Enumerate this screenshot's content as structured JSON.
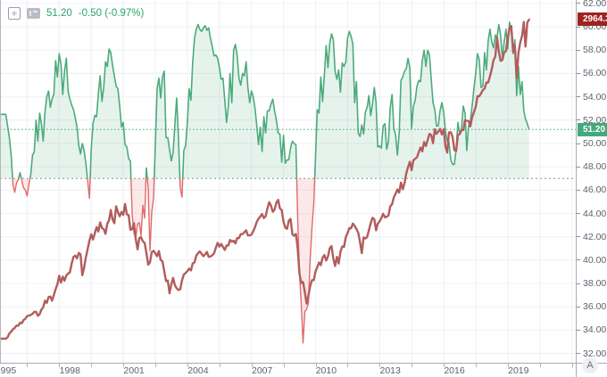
{
  "legend": {
    "value": "51.20",
    "change": "-0.50 (-0.97%)",
    "add_glyph": "+"
  },
  "price_labels": {
    "overlay_last": "2964.3",
    "oscillator_last": "51.20"
  },
  "y_axis": {
    "ticks": [
      "62.00",
      "60.00",
      "58.00",
      "56.00",
      "54.00",
      "52.00",
      "50.00",
      "48.00",
      "46.00",
      "44.00",
      "42.00",
      "40.00",
      "38.00",
      "36.00",
      "34.00",
      "32.00"
    ]
  },
  "x_axis": {
    "ticks": [
      "1995",
      "1998",
      "2001",
      "2004",
      "2007",
      "2010",
      "2013",
      "2016",
      "2019"
    ]
  },
  "corner_button": "A",
  "colors": {
    "legend_text": "#2aa36b",
    "oscillator_line": "#4cab7c",
    "oscillator_fill": "rgba(76,171,124,0.14)",
    "below_baseline_line": "#e16a6a",
    "below_baseline_fill": "rgba(225,106,106,0.15)",
    "overlay_line": "#b25c5c",
    "overlay_badge": "#9e2320",
    "oscillator_badge": "#44a97c",
    "value_dotted_line": "#3fa873",
    "baseline_dotted_line": "#8b8e98",
    "grid": "#eef0f4"
  },
  "chart_data": {
    "type": "line",
    "title": "",
    "x_start": "1995-01",
    "interval": "monthly",
    "x_tick_labels": [
      "1995",
      "1998",
      "2001",
      "2004",
      "2007",
      "2010",
      "2013",
      "2016",
      "2019"
    ],
    "y_axis_visible_range": [
      31.2,
      62.3
    ],
    "y_ticks": [
      32,
      34,
      36,
      38,
      40,
      42,
      44,
      46,
      48,
      50,
      52,
      54,
      56,
      58,
      60,
      62
    ],
    "grid": true,
    "baseline": 47.0,
    "series": [
      {
        "name": "green_oscillator_area",
        "style": "area_with_baseline",
        "last_value": 51.2,
        "values": [
          52.5,
          51.5,
          50.5,
          49.0,
          46.5,
          45.8,
          46.6,
          46.9,
          47.5,
          46.8,
          46.2,
          46.0,
          45.5,
          46.5,
          47.3,
          49.0,
          49.3,
          52.0,
          50.2,
          52.6,
          51.7,
          50.2,
          52.7,
          54.0,
          54.5,
          53.1,
          53.8,
          54.2,
          57.1,
          55.7,
          57.7,
          56.8,
          54.2,
          56.2,
          57.3,
          54.5,
          53.8,
          53.3,
          52.9,
          52.2,
          51.4,
          49.8,
          49.1,
          50.0,
          49.4,
          48.3,
          46.8,
          45.3,
          49.5,
          51.7,
          52.4,
          52.3,
          54.3,
          55.8,
          53.6,
          54.8,
          57.0,
          56.6,
          58.1,
          57.8,
          56.7,
          55.8,
          54.9,
          54.7,
          53.2,
          51.4,
          51.8,
          49.9,
          49.7,
          48.7,
          48.5,
          43.9,
          42.3,
          41.9,
          43.1,
          43.2,
          42.1,
          44.7,
          43.6,
          47.9,
          46.2,
          40.8,
          44.1,
          45.3,
          49.9,
          54.7,
          55.6,
          53.9,
          55.7,
          56.2,
          50.5,
          50.5,
          49.5,
          48.5,
          49.2,
          51.6,
          53.9,
          50.5,
          46.2,
          45.4,
          49.4,
          49.8,
          51.8,
          54.7,
          53.7,
          57.0,
          59.0,
          59.8,
          60.2,
          59.8,
          59.6,
          59.9,
          60.1,
          59.7,
          59.9,
          59.0,
          58.3,
          57.5,
          57.6,
          57.3,
          56.5,
          55.5,
          55.6,
          53.7,
          51.8,
          53.2,
          56.0,
          53.5,
          58.0,
          58.5,
          57.5,
          55.6,
          55.0,
          56.0,
          55.8,
          57.0,
          54.8,
          53.5,
          54.5,
          54.0,
          53.0,
          51.5,
          49.9,
          51.4,
          49.3,
          52.3,
          50.9,
          52.8,
          52.8,
          53.4,
          53.8,
          52.8,
          52.0,
          50.9,
          50.8,
          48.4,
          50.7,
          48.3,
          48.6,
          48.6,
          49.6,
          50.2,
          50.0,
          49.9,
          43.5,
          38.9,
          36.2,
          32.9,
          35.6,
          35.8,
          36.3,
          40.1,
          42.8,
          44.8,
          48.9,
          52.9,
          52.6,
          55.7,
          53.6,
          55.9,
          58.4,
          56.5,
          58.6,
          59.4,
          58.9,
          56.2,
          55.5,
          56.3,
          54.4,
          56.9,
          56.6,
          57.0,
          59.0,
          59.6,
          59.2,
          58.5,
          53.5,
          55.3,
          50.9,
          50.6,
          51.6,
          50.8,
          52.7,
          53.1,
          54.1,
          52.4,
          53.4,
          54.8,
          53.5,
          49.7,
          49.8,
          49.6,
          51.5,
          51.7,
          49.5,
          50.2,
          53.1,
          54.2,
          51.3,
          50.7,
          49.0,
          50.9,
          55.4,
          55.7,
          56.2,
          56.4,
          57.3,
          56.5,
          51.3,
          53.2,
          53.7,
          54.9,
          55.4,
          55.3,
          57.1,
          58.0,
          56.6,
          58.0,
          57.6,
          55.5,
          53.5,
          52.9,
          51.5,
          51.5,
          52.8,
          53.5,
          52.7,
          51.1,
          50.2,
          50.1,
          48.6,
          48.2,
          48.2,
          49.5,
          51.8,
          50.8,
          51.3,
          53.2,
          52.6,
          49.4,
          51.5,
          51.9,
          53.2,
          54.7,
          56.0,
          57.7,
          57.2,
          54.8,
          54.9,
          57.8,
          56.3,
          58.8,
          59.8,
          58.7,
          58.2,
          59.3,
          59.1,
          60.2,
          59.3,
          57.3,
          58.7,
          59.8,
          58.1,
          60.4,
          59.6,
          57.7,
          58.9,
          54.1,
          56.6,
          54.2,
          55.3,
          52.8,
          52.1,
          51.7,
          51.2
        ]
      },
      {
        "name": "red_overlay_line",
        "style": "line",
        "last_value": 2964.3,
        "values": [
          459,
          470,
          500,
          514,
          533,
          544,
          562,
          561,
          584,
          581,
          605,
          615,
          636,
          640,
          645,
          654,
          669,
          670,
          639,
          651,
          687,
          705,
          757,
          740,
          786,
          790,
          757,
          801,
          848,
          885,
          954,
          899,
          947,
          914,
          955,
          970,
          980,
          1049,
          1101,
          1111,
          1090,
          1133,
          1120,
          957,
          1017,
          1098,
          1163,
          1229,
          1279,
          1238,
          1286,
          1335,
          1301,
          1372,
          1328,
          1320,
          1282,
          1362,
          1388,
          1469,
          1394,
          1366,
          1498,
          1452,
          1420,
          1454,
          1430,
          1517,
          1436,
          1429,
          1314,
          1320,
          1366,
          1239,
          1160,
          1249,
          1255,
          1224,
          1211,
          1133,
          1040,
          1059,
          1139,
          1148,
          1130,
          1106,
          1147,
          1076,
          1067,
          989,
          911,
          916,
          815,
          885,
          936,
          879,
          855,
          841,
          848,
          916,
          963,
          974,
          990,
          1008,
          995,
          1050,
          1058,
          1111,
          1131,
          1144,
          1126,
          1107,
          1120,
          1140,
          1101,
          1104,
          1114,
          1130,
          1173,
          1211,
          1181,
          1203,
          1180,
          1156,
          1191,
          1191,
          1234,
          1220,
          1228,
          1207,
          1249,
          1248,
          1280,
          1280,
          1294,
          1310,
          1270,
          1270,
          1276,
          1303,
          1335,
          1377,
          1400,
          1418,
          1438,
          1406,
          1420,
          1482,
          1530,
          1503,
          1455,
          1473,
          1526,
          1549,
          1481,
          1468,
          1378,
          1330,
          1322,
          1385,
          1400,
          1280,
          1267,
          1282,
          1166,
          968,
          896,
          903,
          825,
          735,
          797,
          872,
          919,
          919,
          987,
          1020,
          1057,
          1036,
          1095,
          1115,
          1073,
          1104,
          1169,
          1186,
          1089,
          1030,
          1101,
          1049,
          1141,
          1183,
          1180,
          1257,
          1286,
          1327,
          1325,
          1363,
          1345,
          1320,
          1292,
          1218,
          1131,
          1253,
          1246,
          1257,
          1312,
          1365,
          1408,
          1397,
          1310,
          1362,
          1379,
          1406,
          1440,
          1412,
          1416,
          1426,
          1498,
          1514,
          1569,
          1597,
          1630,
          1606,
          1685,
          1632,
          1681,
          1756,
          1805,
          1848,
          1782,
          1859,
          1872,
          1883,
          1923,
          1960,
          1930,
          2003,
          1972,
          2018,
          2067,
          2058,
          1994,
          2104,
          2067,
          2085,
          2107,
          2063,
          2103,
          1972,
          1920,
          2079,
          2080,
          2043,
          1940,
          1932,
          2059,
          2065,
          2096,
          2098,
          2173,
          2170,
          2168,
          2126,
          2198,
          2238,
          2278,
          2363,
          2362,
          2384,
          2411,
          2423,
          2470,
          2471,
          2519,
          2575,
          2647,
          2673,
          2823,
          2713,
          2640,
          2648,
          2705,
          2718,
          2816,
          2901,
          2913,
          2711,
          2760,
          2506,
          2704,
          2784,
          2834,
          2945,
          2752,
          2941,
          2964
        ]
      }
    ]
  }
}
